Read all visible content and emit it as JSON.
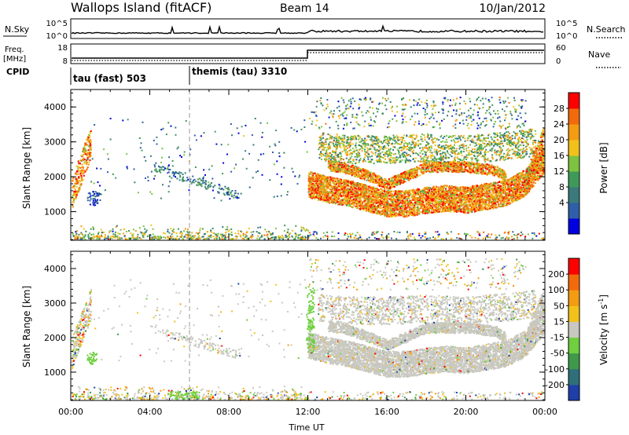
{
  "header": {
    "title": "Wallops Island (fitACF)",
    "beam": "Beam 14",
    "date": "10/Jan/2012"
  },
  "top_panels": {
    "nsky_label": "N.Sky",
    "nsky_ticks": [
      "10^5",
      "10^0"
    ],
    "nsearch_label": "N.Search",
    "nsearch_ticks": [
      "10^5",
      "10^0"
    ],
    "freq_label": "Freq.",
    "freq_unit": "[MHz]",
    "freq_ticks": [
      "18",
      "8"
    ],
    "nave_label": "Nave",
    "nave_ticks": [
      "60",
      "0"
    ],
    "cpid_label": "CPID",
    "cpid_segments": [
      {
        "label": "tau (fast) 503",
        "start_hour": 0,
        "end_hour": 6
      },
      {
        "label": "themis (tau) 3310",
        "start_hour": 6,
        "end_hour": 24
      }
    ]
  },
  "chart_data": [
    {
      "type": "heatmap",
      "name": "power",
      "ylabel": "Slant Range [km]",
      "y_ticks": [
        1000,
        2000,
        3000,
        4000
      ],
      "ylim": [
        180,
        4500
      ],
      "x_ticks": [
        "00:00",
        "04:00",
        "08:00",
        "12:00",
        "16:00",
        "20:00",
        "00:00"
      ],
      "xlim_hours": [
        0,
        24
      ],
      "colorbar": {
        "label": "Power [dB]",
        "ticks": [
          "28",
          "24",
          "20",
          "16",
          "12",
          "8",
          "4"
        ],
        "colors": [
          "#0000e0",
          "#2f5fa8",
          "#3a7a7a",
          "#3f9a5a",
          "#7dc241",
          "#f2c21a",
          "#f39c12",
          "#f26a0c",
          "#ff0000"
        ]
      }
    },
    {
      "type": "heatmap",
      "name": "velocity",
      "ylabel": "Slant Range [km]",
      "y_ticks": [
        1000,
        2000,
        3000,
        4000
      ],
      "ylim": [
        180,
        4500
      ],
      "x_ticks": [
        "00:00",
        "04:00",
        "08:00",
        "12:00",
        "16:00",
        "20:00",
        "00:00"
      ],
      "xlabel": "Time UT",
      "xlim_hours": [
        0,
        24
      ],
      "colorbar": {
        "label": "Velocity [m s",
        "label_sup": "-1",
        "label_end": "]",
        "ticks": [
          "200",
          "100",
          "50",
          "15",
          "-15",
          "-50",
          "-100",
          "-200"
        ],
        "colors": [
          "#1f3fa8",
          "#2f6f7a",
          "#3e9a4a",
          "#6fcf3f",
          "#c8c8c0",
          "#f2c21a",
          "#f39c12",
          "#f26a0c",
          "#ff0000"
        ]
      }
    }
  ]
}
